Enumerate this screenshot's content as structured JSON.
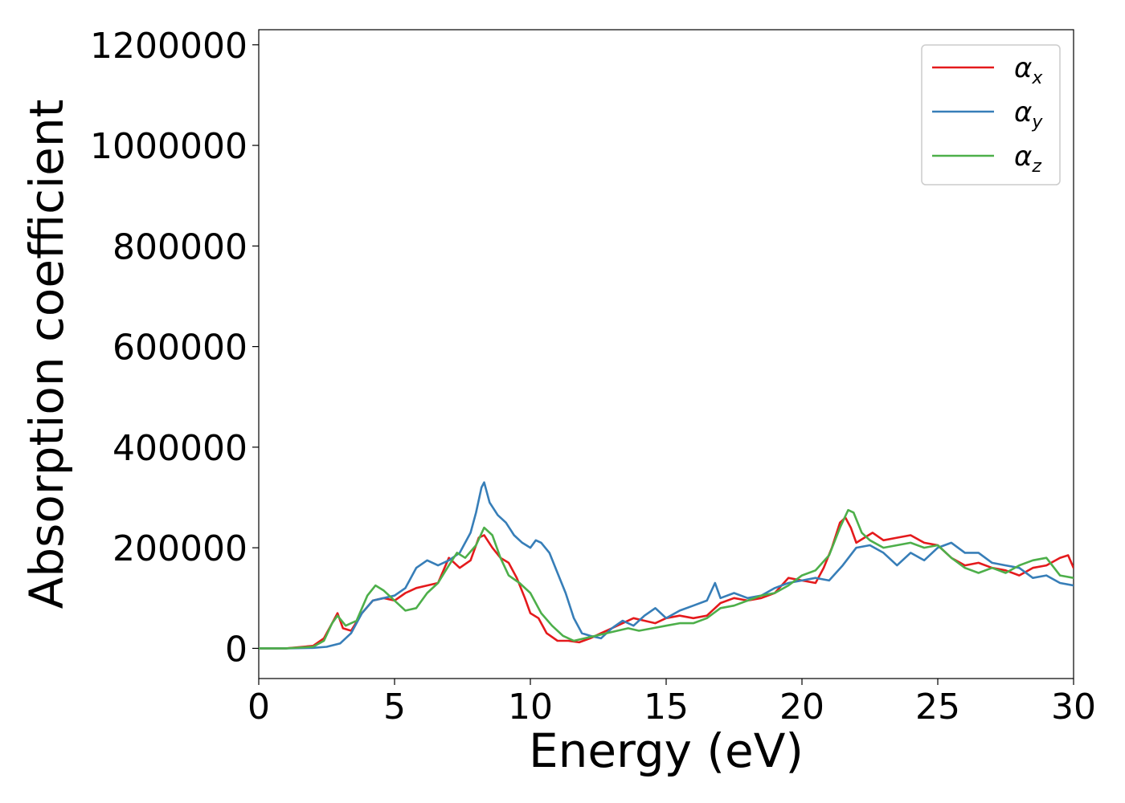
{
  "chart_data": {
    "type": "line",
    "title": "",
    "xlabel": "Energy (eV)",
    "ylabel": "Absorption coefficient",
    "xlim": [
      0,
      30
    ],
    "ylim": [
      -60000,
      1230000
    ],
    "xticks": [
      0,
      5,
      10,
      15,
      20,
      25,
      30
    ],
    "xtick_labels": [
      "0",
      "5",
      "10",
      "15",
      "20",
      "25",
      "30"
    ],
    "yticks": [
      0,
      200000,
      400000,
      600000,
      800000,
      1000000,
      1200000
    ],
    "ytick_labels": [
      "0",
      "200000",
      "400000",
      "600000",
      "800000",
      "1000000",
      "1200000"
    ],
    "grid": false,
    "legend_position": "top-right",
    "series": [
      {
        "name": "α",
        "subscript": "x",
        "color": "#e41a1c",
        "x": [
          0,
          1,
          2,
          2.4,
          2.7,
          2.9,
          3.1,
          3.4,
          3.8,
          4.2,
          4.6,
          5.0,
          5.4,
          5.8,
          6.2,
          6.6,
          7.0,
          7.4,
          7.8,
          8.1,
          8.3,
          8.6,
          8.9,
          9.2,
          9.5,
          9.8,
          10.0,
          10.3,
          10.6,
          11.0,
          11.4,
          11.8,
          12.2,
          12.6,
          13.0,
          13.4,
          13.8,
          14.2,
          14.6,
          15.0,
          15.5,
          16.0,
          16.5,
          17.0,
          17.5,
          18.0,
          18.5,
          19.0,
          19.5,
          20.0,
          20.5,
          20.8,
          21.1,
          21.4,
          21.6,
          21.8,
          22.0,
          22.3,
          22.6,
          23.0,
          23.5,
          24.0,
          24.5,
          25.0,
          25.5,
          26.0,
          26.5,
          27.0,
          27.5,
          28.0,
          28.5,
          29.0,
          29.5,
          29.8,
          30.0
        ],
        "y": [
          0,
          0,
          5000,
          20000,
          50000,
          70000,
          40000,
          35000,
          70000,
          95000,
          100000,
          95000,
          110000,
          120000,
          125000,
          130000,
          180000,
          160000,
          175000,
          220000,
          225000,
          200000,
          180000,
          170000,
          140000,
          100000,
          70000,
          60000,
          30000,
          15000,
          15000,
          12000,
          20000,
          30000,
          40000,
          50000,
          60000,
          55000,
          50000,
          60000,
          65000,
          60000,
          65000,
          90000,
          100000,
          95000,
          100000,
          110000,
          140000,
          135000,
          130000,
          160000,
          200000,
          250000,
          260000,
          240000,
          210000,
          220000,
          230000,
          215000,
          220000,
          225000,
          210000,
          205000,
          180000,
          165000,
          170000,
          160000,
          155000,
          145000,
          160000,
          165000,
          180000,
          185000,
          160000
        ]
      },
      {
        "name": "α",
        "subscript": "y",
        "color": "#377eb8",
        "x": [
          0,
          1,
          2,
          2.5,
          3.0,
          3.4,
          3.8,
          4.2,
          4.6,
          5.0,
          5.4,
          5.8,
          6.2,
          6.6,
          7.0,
          7.4,
          7.8,
          8.0,
          8.2,
          8.3,
          8.5,
          8.8,
          9.1,
          9.4,
          9.7,
          10.0,
          10.2,
          10.4,
          10.7,
          11.0,
          11.3,
          11.6,
          11.9,
          12.2,
          12.6,
          13.0,
          13.4,
          13.8,
          14.2,
          14.6,
          15.0,
          15.5,
          16.0,
          16.5,
          16.8,
          17.0,
          17.5,
          18.0,
          18.5,
          19.0,
          19.5,
          20.0,
          20.5,
          21.0,
          21.5,
          22.0,
          22.5,
          23.0,
          23.5,
          24.0,
          24.5,
          25.0,
          25.5,
          26.0,
          26.5,
          27.0,
          27.5,
          28.0,
          28.5,
          29.0,
          29.5,
          30.0
        ],
        "y": [
          0,
          0,
          1000,
          3000,
          10000,
          30000,
          70000,
          95000,
          100000,
          105000,
          120000,
          160000,
          175000,
          165000,
          175000,
          190000,
          230000,
          270000,
          320000,
          330000,
          290000,
          265000,
          250000,
          225000,
          210000,
          200000,
          215000,
          210000,
          190000,
          150000,
          110000,
          60000,
          30000,
          25000,
          20000,
          40000,
          55000,
          45000,
          65000,
          80000,
          60000,
          75000,
          85000,
          95000,
          130000,
          100000,
          110000,
          100000,
          105000,
          120000,
          130000,
          135000,
          140000,
          135000,
          165000,
          200000,
          205000,
          190000,
          165000,
          190000,
          175000,
          200000,
          210000,
          190000,
          190000,
          170000,
          165000,
          160000,
          140000,
          145000,
          130000,
          125000
        ]
      },
      {
        "name": "α",
        "subscript": "z",
        "color": "#4daf4a",
        "x": [
          0,
          1,
          2,
          2.4,
          2.7,
          2.9,
          3.2,
          3.6,
          4.0,
          4.3,
          4.6,
          5.0,
          5.4,
          5.8,
          6.2,
          6.6,
          7.0,
          7.3,
          7.6,
          8.0,
          8.3,
          8.6,
          8.9,
          9.2,
          9.6,
          10.0,
          10.4,
          10.8,
          11.2,
          11.6,
          12.0,
          12.4,
          12.8,
          13.2,
          13.6,
          14.0,
          14.5,
          15.0,
          15.5,
          16.0,
          16.5,
          17.0,
          17.5,
          18.0,
          18.5,
          19.0,
          19.5,
          20.0,
          20.5,
          21.0,
          21.4,
          21.7,
          21.9,
          22.2,
          22.5,
          23.0,
          23.5,
          24.0,
          24.5,
          25.0,
          25.5,
          26.0,
          26.5,
          27.0,
          27.5,
          28.0,
          28.5,
          29.0,
          29.5,
          30.0
        ],
        "y": [
          0,
          0,
          3000,
          15000,
          50000,
          65000,
          45000,
          55000,
          105000,
          125000,
          115000,
          95000,
          75000,
          80000,
          110000,
          130000,
          165000,
          190000,
          180000,
          205000,
          240000,
          225000,
          180000,
          145000,
          130000,
          110000,
          70000,
          45000,
          25000,
          15000,
          20000,
          25000,
          30000,
          35000,
          40000,
          35000,
          40000,
          45000,
          50000,
          50000,
          60000,
          80000,
          85000,
          95000,
          105000,
          110000,
          125000,
          145000,
          155000,
          185000,
          240000,
          275000,
          270000,
          230000,
          215000,
          200000,
          205000,
          210000,
          200000,
          205000,
          180000,
          160000,
          150000,
          160000,
          150000,
          165000,
          175000,
          180000,
          145000,
          140000
        ]
      }
    ]
  }
}
